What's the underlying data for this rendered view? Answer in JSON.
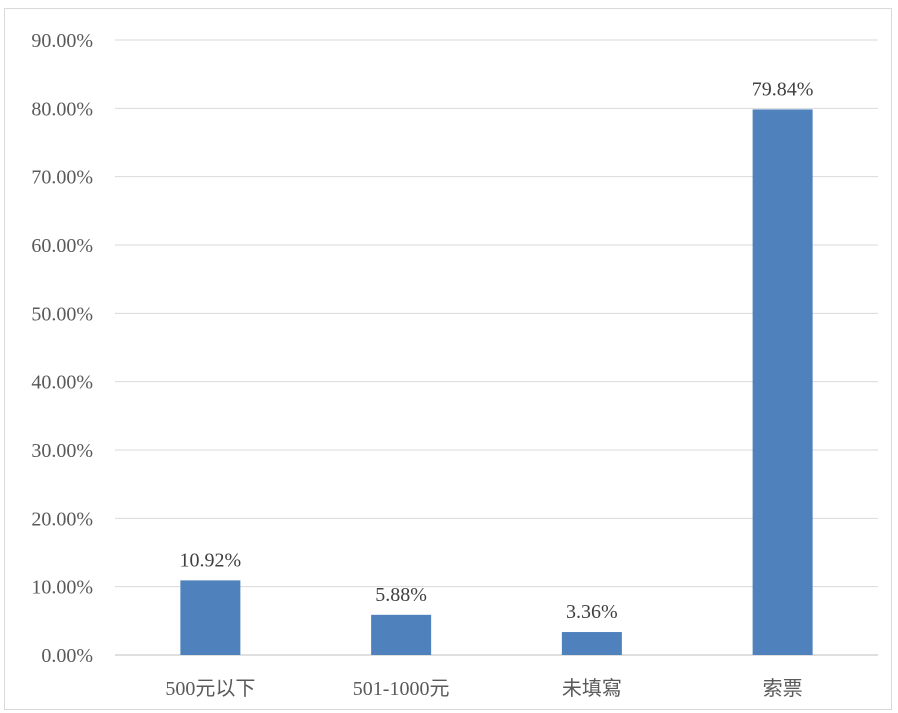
{
  "chart_data": {
    "type": "bar",
    "categories": [
      "500元以下",
      "501-1000元",
      "未填寫",
      "索票"
    ],
    "values": [
      10.92,
      5.88,
      3.36,
      79.84
    ],
    "data_labels": [
      "10.92%",
      "5.88%",
      "3.36%",
      "79.84%"
    ],
    "title": "",
    "xlabel": "",
    "ylabel": "",
    "ylim": [
      0,
      90
    ],
    "y_ticks": [
      0,
      10,
      20,
      30,
      40,
      50,
      60,
      70,
      80,
      90
    ],
    "y_tick_labels": [
      "0.00%",
      "10.00%",
      "20.00%",
      "30.00%",
      "40.00%",
      "50.00%",
      "60.00%",
      "70.00%",
      "80.00%",
      "90.00%"
    ],
    "grid": true,
    "legend": "none",
    "bar_color": "#4f81bd"
  }
}
